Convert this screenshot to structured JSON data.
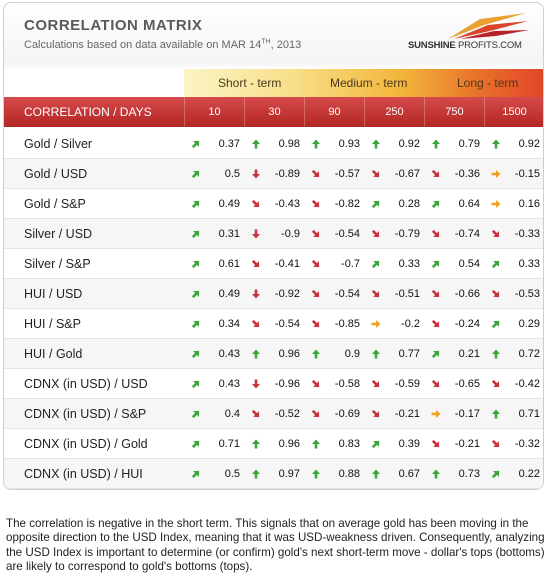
{
  "title": "CORRELATION MATRIX",
  "subtitle_prefix": "Calculations based on data available on  MAR 14",
  "subtitle_sup": "TH",
  "subtitle_suffix": ", 2013",
  "logo": {
    "part1": "SUNSHINE",
    "part2": "PROFITS.COM"
  },
  "terms": {
    "short": "Short - term",
    "medium": "Medium - term",
    "long": "Long - term"
  },
  "header_label": "CORRELATION / DAYS",
  "days": [
    "10",
    "30",
    "90",
    "250",
    "750",
    "1500"
  ],
  "colors": {
    "up": "#3aa53a",
    "down": "#c8323c",
    "flat": "#f0a020",
    "header": "#c23333"
  },
  "rows": [
    {
      "label": "Gold / Silver",
      "values": [
        "0.37",
        "0.98",
        "0.93",
        "0.92",
        "0.79",
        "0.92"
      ],
      "arrows": [
        "up-right",
        "up",
        "up",
        "up",
        "up",
        "up"
      ]
    },
    {
      "label": "Gold / USD",
      "values": [
        "0.5",
        "-0.89",
        "-0.57",
        "-0.67",
        "-0.36",
        "-0.15"
      ],
      "arrows": [
        "up-right",
        "down",
        "down-right",
        "down-right",
        "down-right",
        "flat"
      ]
    },
    {
      "label": "Gold / S&P",
      "values": [
        "0.49",
        "-0.43",
        "-0.82",
        "0.28",
        "0.64",
        "0.16"
      ],
      "arrows": [
        "up-right",
        "down-right",
        "down-right",
        "up-right",
        "up-right",
        "flat"
      ]
    },
    {
      "label": "Silver / USD",
      "values": [
        "0.31",
        "-0.9",
        "-0.54",
        "-0.79",
        "-0.74",
        "-0.33"
      ],
      "arrows": [
        "up-right",
        "down",
        "down-right",
        "down-right",
        "down-right",
        "down-right"
      ]
    },
    {
      "label": "Silver / S&P",
      "values": [
        "0.61",
        "-0.41",
        "-0.7",
        "0.33",
        "0.54",
        "0.33"
      ],
      "arrows": [
        "up-right",
        "down-right",
        "down-right",
        "up-right",
        "up-right",
        "up-right"
      ]
    },
    {
      "label": "HUI / USD",
      "values": [
        "0.49",
        "-0.92",
        "-0.54",
        "-0.51",
        "-0.66",
        "-0.53"
      ],
      "arrows": [
        "up-right",
        "down",
        "down-right",
        "down-right",
        "down-right",
        "down-right"
      ]
    },
    {
      "label": "HUI / S&P",
      "values": [
        "0.34",
        "-0.54",
        "-0.85",
        "-0.2",
        "-0.24",
        "0.29"
      ],
      "arrows": [
        "up-right",
        "down-right",
        "down-right",
        "flat",
        "down-right",
        "up-right"
      ]
    },
    {
      "label": "HUI / Gold",
      "values": [
        "0.43",
        "0.96",
        "0.9",
        "0.77",
        "0.21",
        "0.72"
      ],
      "arrows": [
        "up-right",
        "up",
        "up",
        "up",
        "up-right",
        "up"
      ]
    },
    {
      "label": "CDNX (in USD) / USD",
      "values": [
        "0.43",
        "-0.96",
        "-0.58",
        "-0.59",
        "-0.65",
        "-0.42"
      ],
      "arrows": [
        "up-right",
        "down",
        "down-right",
        "down-right",
        "down-right",
        "down-right"
      ]
    },
    {
      "label": "CDNX (in USD) / S&P",
      "values": [
        "0.4",
        "-0.52",
        "-0.69",
        "-0.21",
        "-0.17",
        "0.71"
      ],
      "arrows": [
        "up-right",
        "down-right",
        "down-right",
        "down-right",
        "flat",
        "up"
      ]
    },
    {
      "label": "CDNX (in USD) / Gold",
      "values": [
        "0.71",
        "0.96",
        "0.83",
        "0.39",
        "-0.21",
        "-0.32"
      ],
      "arrows": [
        "up-right",
        "up",
        "up",
        "up-right",
        "down-right",
        "down-right"
      ]
    },
    {
      "label": "CDNX (in USD) / HUI",
      "values": [
        "0.5",
        "0.97",
        "0.88",
        "0.67",
        "0.73",
        "0.22"
      ],
      "arrows": [
        "up-right",
        "up",
        "up",
        "up",
        "up",
        "up-right"
      ]
    }
  ],
  "note": "The correlation is negative in the short term. This signals that on average gold has been moving in the opposite direction to the USD Index, meaning that it was USD-weakness driven. Consequently, analyzing the USD Index is important to determine (or confirm) gold's next short-term move - dollar's tops (bottoms) are likely to correspond to gold's bottoms (tops)."
}
